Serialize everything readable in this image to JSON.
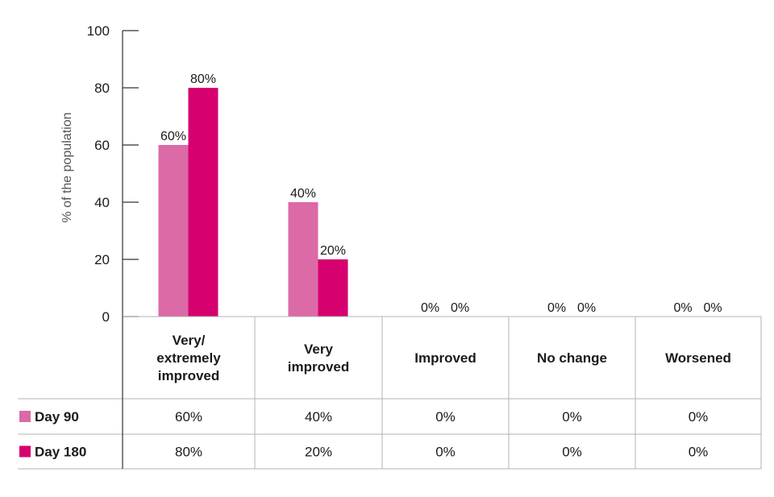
{
  "chart_data": {
    "type": "bar",
    "ylabel": "% of the population",
    "ylim": [
      0,
      100
    ],
    "yticks": [
      0,
      20,
      40,
      60,
      80,
      100
    ],
    "categories": [
      [
        "Very/",
        "extremely",
        "improved"
      ],
      [
        "Very",
        "improved"
      ],
      [
        "Improved"
      ],
      [
        "No change"
      ],
      [
        "Worsened"
      ]
    ],
    "series": [
      {
        "name": "Day 90",
        "color": "#db6aa6",
        "values": [
          60,
          40,
          0,
          0,
          0
        ],
        "labels": [
          "60%",
          "40%",
          "0%",
          "0%",
          "0%"
        ]
      },
      {
        "name": "Day 180",
        "color": "#d6006e",
        "values": [
          80,
          20,
          0,
          0,
          0
        ],
        "labels": [
          "80%",
          "20%",
          "0%",
          "0%",
          "0%"
        ]
      }
    ],
    "grid": false,
    "legend": "table-rows"
  }
}
